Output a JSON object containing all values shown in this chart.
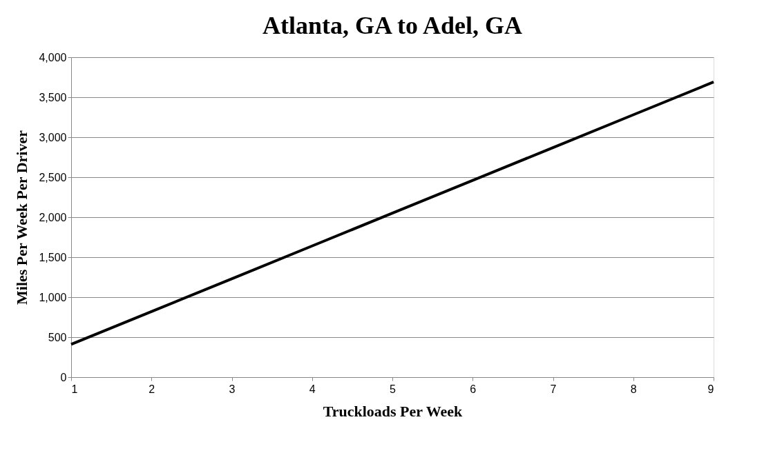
{
  "chart_data": {
    "type": "line",
    "title": "Atlanta, GA to Adel, GA",
    "xlabel": "Truckloads Per Week",
    "ylabel": "Miles Per Week Per Driver",
    "x": [
      1,
      2,
      3,
      4,
      5,
      6,
      7,
      8,
      9
    ],
    "series": [
      {
        "color": "#000000",
        "values": [
          410,
          820,
          1230,
          1640,
          2050,
          2460,
          2870,
          3280,
          3690
        ]
      }
    ],
    "xlim": [
      1,
      9
    ],
    "xticks": [
      1,
      2,
      3,
      4,
      5,
      6,
      7,
      8,
      9
    ],
    "ylim": [
      0,
      4000
    ],
    "yticks": [
      0,
      500,
      {
        "value": 1000,
        "label": "1,000"
      },
      {
        "value": 1500,
        "label": "1,500"
      },
      {
        "value": 2000,
        "label": "2,000"
      },
      {
        "value": 2500,
        "label": "2,500"
      },
      {
        "value": 3000,
        "label": "3,000"
      },
      {
        "value": 3500,
        "label": "3,500"
      },
      {
        "value": 4000,
        "label": "4,000"
      }
    ],
    "grid": "y",
    "legend": false,
    "marker": "none",
    "line_style": "solid"
  }
}
